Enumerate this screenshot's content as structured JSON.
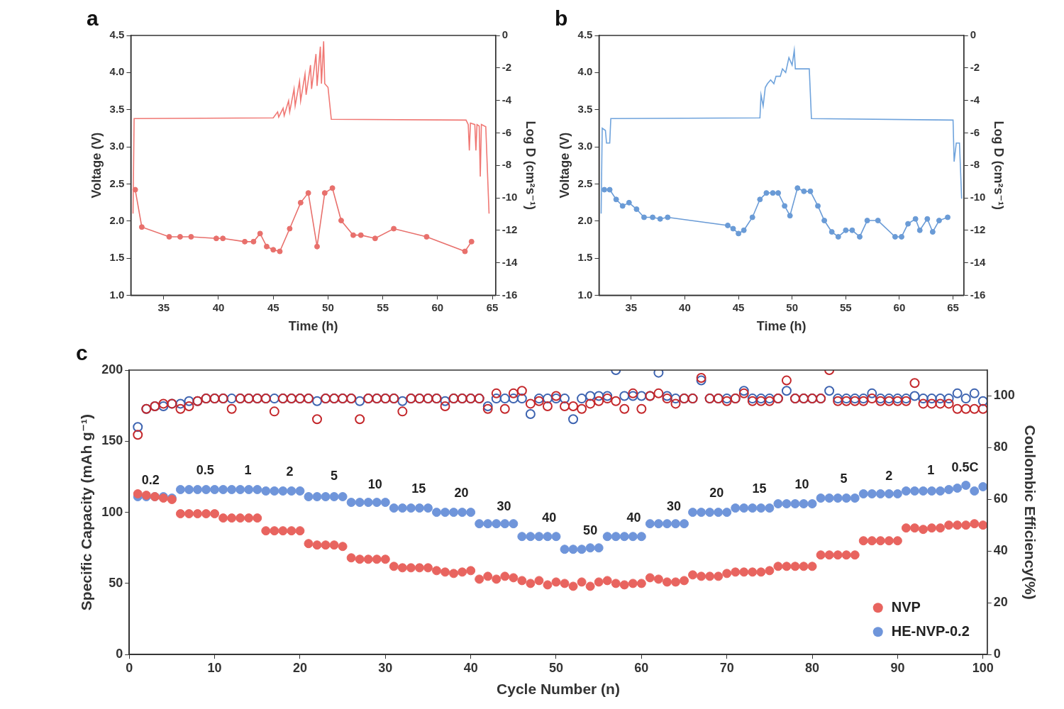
{
  "chart_data": [
    {
      "type": "line",
      "title": "a",
      "x_label": "Time (h)",
      "y_label": "Voltage (V)",
      "y2_label": "Log D (cm²s⁻¹)",
      "xlim": [
        32,
        65.3
      ],
      "xticks": [
        35,
        40,
        45,
        50,
        55,
        60,
        65
      ],
      "ylim": [
        1,
        4.5
      ],
      "yticks": [
        {
          "value": 1,
          "label": "1.0"
        },
        1.5,
        {
          "value": 2,
          "label": "2.0"
        },
        2.5,
        {
          "value": 3,
          "label": "3.0"
        },
        3.5,
        {
          "value": 4,
          "label": "4.0"
        },
        4.5
      ],
      "y2lim": [
        -16,
        0
      ],
      "y2ticks": [
        -16,
        -14,
        -12,
        -10,
        -8,
        -6,
        -4,
        -2,
        0
      ],
      "grid": false,
      "series": [
        {
          "color": "#f07874",
          "marker": "none",
          "line_style": "solid",
          "x": [
            32.2,
            32.3,
            45.0,
            45.4,
            45.5,
            45.9,
            46.0,
            46.4,
            46.5,
            46.9,
            47.0,
            47.4,
            47.5,
            47.9,
            48.0,
            48.4,
            48.5,
            48.9,
            49.0,
            49.3,
            49.4,
            49.6,
            49.7,
            50.0,
            50.3,
            62.6,
            62.8,
            62.9,
            63.0,
            63.4,
            63.5,
            63.6,
            63.8,
            63.9,
            64.0,
            64.4,
            64.7
          ],
          "values": [
            2.1,
            3.38,
            3.39,
            3.47,
            3.4,
            3.52,
            3.42,
            3.62,
            3.47,
            3.78,
            3.55,
            3.88,
            3.62,
            3.98,
            3.7,
            4.1,
            3.78,
            4.25,
            3.82,
            4.35,
            3.85,
            4.42,
            3.85,
            3.8,
            3.37,
            3.36,
            3.3,
            2.95,
            3.32,
            3.3,
            2.95,
            3.3,
            3.28,
            2.6,
            3.3,
            3.27,
            2.1
          ]
        },
        {
          "color": "#e8706c",
          "marker": "circle",
          "line_style": "solid",
          "axis": "y2",
          "x": [
            32.4,
            33.0,
            35.5,
            36.5,
            37.5,
            39.8,
            40.4,
            42.4,
            43.2,
            43.8,
            44.4,
            45.0,
            45.6,
            46.5,
            47.5,
            48.2,
            49.0,
            49.7,
            50.4,
            51.2,
            52.3,
            53.0,
            54.3,
            56.0,
            59.0,
            62.5,
            63.1
          ],
          "values": [
            -9.5,
            -11.8,
            -12.4,
            -12.4,
            -12.4,
            -12.5,
            -12.5,
            -12.7,
            -12.7,
            -12.2,
            -13.0,
            -13.2,
            -13.3,
            -11.9,
            -10.3,
            -9.7,
            -13.0,
            -9.7,
            -9.4,
            -11.4,
            -12.3,
            -12.3,
            -12.5,
            -11.9,
            -12.4,
            -13.3,
            -12.7
          ]
        }
      ]
    },
    {
      "type": "line",
      "title": "b",
      "x_label": "Time (h)",
      "y_label": "Voltage (V)",
      "y2_label": "Log D (cm²s⁻¹)",
      "xlim": [
        32,
        66
      ],
      "xticks": [
        35,
        40,
        45,
        50,
        55,
        60,
        65
      ],
      "ylim": [
        1,
        4.5
      ],
      "yticks": [
        {
          "value": 1,
          "label": "1.0"
        },
        1.5,
        {
          "value": 2,
          "label": "2.0"
        },
        2.5,
        {
          "value": 3,
          "label": "3.0"
        },
        3.5,
        {
          "value": 4,
          "label": "4.0"
        },
        4.5
      ],
      "y2lim": [
        -16,
        0
      ],
      "y2ticks": [
        -16,
        -14,
        -12,
        -10,
        -8,
        -6,
        -4,
        -2,
        0
      ],
      "grid": false,
      "series": [
        {
          "color": "#6fa3dc",
          "marker": "none",
          "line_style": "solid",
          "x": [
            32.2,
            32.3,
            32.6,
            32.7,
            33.0,
            33.1,
            47.0,
            47.1,
            47.3,
            47.5,
            47.7,
            48.0,
            48.3,
            48.5,
            48.9,
            49.1,
            49.4,
            49.7,
            50.0,
            50.2,
            50.3,
            51.6,
            51.8,
            65.0,
            65.1,
            65.3,
            65.6,
            65.8
          ],
          "values": [
            2.1,
            3.25,
            3.22,
            3.05,
            3.05,
            3.38,
            3.39,
            3.7,
            3.55,
            3.8,
            3.85,
            3.9,
            3.85,
            3.95,
            3.95,
            4.05,
            4.0,
            4.2,
            4.1,
            4.3,
            4.05,
            4.05,
            3.38,
            3.36,
            2.8,
            3.05,
            3.05,
            2.3
          ]
        },
        {
          "color": "#6a9bd6",
          "marker": "circle",
          "line_style": "solid",
          "axis": "y2",
          "x": [
            32.5,
            33.0,
            33.6,
            34.2,
            34.8,
            35.5,
            36.2,
            37.0,
            37.7,
            38.4,
            44.0,
            44.5,
            45.0,
            45.5,
            46.3,
            47.0,
            47.6,
            48.2,
            48.7,
            49.3,
            49.8,
            50.5,
            51.1,
            51.7,
            52.4,
            53.0,
            53.7,
            54.3,
            55.0,
            55.6,
            56.3,
            57.0,
            58.0,
            59.6,
            60.2,
            60.8,
            61.5,
            61.9,
            62.6,
            63.1,
            63.7,
            64.5
          ],
          "values": [
            -9.5,
            -9.5,
            -10.1,
            -10.5,
            -10.3,
            -10.7,
            -11.2,
            -11.2,
            -11.3,
            -11.2,
            -11.7,
            -11.9,
            -12.2,
            -12.0,
            -11.2,
            -10.1,
            -9.7,
            -9.7,
            -9.7,
            -10.5,
            -11.1,
            -9.4,
            -9.6,
            -9.6,
            -10.5,
            -11.4,
            -12.1,
            -12.4,
            -12.0,
            -12.0,
            -12.4,
            -11.4,
            -11.4,
            -12.4,
            -12.4,
            -11.6,
            -11.3,
            -12.0,
            -11.3,
            -12.1,
            -11.4,
            -11.2
          ]
        }
      ]
    },
    {
      "type": "scatter",
      "title": "c",
      "x_label": "Cycle Number (n)",
      "y_label": "Specific Capacity (mAh g⁻¹)",
      "y2_label": "Coulombic Efficiency(%)",
      "xlim": [
        0,
        100.5
      ],
      "xticks": [
        0,
        10,
        20,
        30,
        40,
        50,
        60,
        70,
        80,
        90,
        100
      ],
      "ylim": [
        0,
        200
      ],
      "yticks": [
        0,
        50,
        100,
        150,
        200
      ],
      "y2lim": [
        0,
        110
      ],
      "y2ticks": [
        0,
        20,
        40,
        60,
        80,
        100
      ],
      "grid": false,
      "legend": "lower right",
      "x": [
        1,
        2,
        3,
        4,
        5,
        6,
        7,
        8,
        9,
        10,
        11,
        12,
        13,
        14,
        15,
        16,
        17,
        18,
        19,
        20,
        21,
        22,
        23,
        24,
        25,
        26,
        27,
        28,
        29,
        30,
        31,
        32,
        33,
        34,
        35,
        36,
        37,
        38,
        39,
        40,
        41,
        42,
        43,
        44,
        45,
        46,
        47,
        48,
        49,
        50,
        51,
        52,
        53,
        54,
        55,
        56,
        57,
        58,
        59,
        60,
        61,
        62,
        63,
        64,
        65,
        66,
        67,
        68,
        69,
        70,
        71,
        72,
        73,
        74,
        75,
        76,
        77,
        78,
        79,
        80,
        81,
        82,
        83,
        84,
        85,
        86,
        87,
        88,
        89,
        90,
        91,
        92,
        93,
        94,
        95,
        96,
        97,
        98,
        99,
        100
      ],
      "series": [
        {
          "name": "NVP",
          "color": "#e8645f",
          "marker": "circle",
          "values": [
            113,
            112,
            111,
            110,
            109,
            99,
            99,
            99,
            99,
            99,
            96,
            96,
            96,
            96,
            96,
            87,
            87,
            87,
            87,
            87,
            78,
            77,
            77,
            77,
            76,
            68,
            67,
            67,
            67,
            67,
            62,
            61,
            61,
            61,
            61,
            59,
            58,
            57,
            58,
            59,
            53,
            55,
            53,
            55,
            54,
            52,
            50,
            52,
            49,
            51,
            50,
            48,
            51,
            48,
            51,
            52,
            50,
            49,
            50,
            50,
            54,
            53,
            51,
            51,
            52,
            56,
            55,
            55,
            55,
            57,
            58,
            58,
            58,
            58,
            59,
            62,
            62,
            62,
            62,
            62,
            70,
            70,
            70,
            70,
            70,
            80,
            80,
            80,
            80,
            80,
            89,
            89,
            88,
            89,
            89,
            91,
            91,
            91,
            92,
            91
          ]
        },
        {
          "name": "HE-NVP-0.2",
          "color": "#6f95da",
          "marker": "circle",
          "values": [
            111,
            111,
            111,
            111,
            110,
            116,
            116,
            116,
            116,
            116,
            116,
            116,
            116,
            116,
            116,
            115,
            115,
            115,
            115,
            115,
            111,
            111,
            111,
            111,
            111,
            107,
            107,
            107,
            107,
            107,
            103,
            103,
            103,
            103,
            103,
            100,
            100,
            100,
            100,
            100,
            92,
            92,
            92,
            92,
            92,
            83,
            83,
            83,
            83,
            83,
            74,
            74,
            74,
            75,
            75,
            83,
            83,
            83,
            83,
            83,
            92,
            92,
            92,
            92,
            92,
            100,
            100,
            100,
            100,
            100,
            103,
            103,
            103,
            103,
            103,
            106,
            106,
            106,
            106,
            106,
            110,
            110,
            110,
            110,
            110,
            113,
            113,
            113,
            113,
            113,
            115,
            115,
            115,
            115,
            115,
            116,
            117,
            119,
            115,
            118
          ]
        },
        {
          "name": "NVP",
          "color": "#c4272b",
          "marker": "open_circle",
          "axis": "y2",
          "values": [
            85,
            95,
            96,
            97,
            97,
            95,
            96,
            98,
            99,
            99,
            99,
            95,
            99,
            99,
            99,
            99,
            94,
            99,
            99,
            99,
            99,
            91,
            99,
            99,
            99,
            99,
            91,
            99,
            99,
            99,
            99,
            94,
            99,
            99,
            99,
            99,
            96,
            99,
            99,
            99,
            99,
            95,
            101,
            95,
            101,
            102,
            97,
            98,
            96,
            100,
            96,
            96,
            95,
            97,
            98,
            99,
            98,
            95,
            101,
            95,
            100,
            101,
            99,
            97,
            99,
            99,
            107,
            99,
            99,
            98,
            99,
            101,
            98,
            98,
            98,
            99,
            106,
            99,
            99,
            99,
            99,
            110,
            98,
            98,
            98,
            98,
            99,
            98,
            98,
            98,
            98,
            105,
            97,
            97,
            97,
            97,
            95,
            95,
            95,
            95
          ]
        },
        {
          "name": "HE-NVP-0.2",
          "color": "#3d63b0",
          "marker": "open_circle",
          "axis": "y2",
          "values": [
            88,
            95,
            96,
            96,
            97,
            97,
            98,
            98,
            99,
            99,
            99,
            99,
            99,
            99,
            99,
            99,
            99,
            99,
            99,
            99,
            99,
            98,
            99,
            99,
            99,
            99,
            98,
            99,
            99,
            99,
            99,
            98,
            99,
            99,
            99,
            99,
            98,
            99,
            99,
            99,
            99,
            96,
            99,
            99,
            99,
            99,
            93,
            99,
            99,
            99,
            99,
            91,
            99,
            100,
            100,
            100,
            110,
            100,
            100,
            100,
            100,
            109,
            100,
            99,
            99,
            99,
            106,
            99,
            99,
            99,
            99,
            102,
            99,
            99,
            99,
            99,
            102,
            99,
            99,
            99,
            99,
            102,
            99,
            99,
            99,
            99,
            101,
            99,
            99,
            99,
            99,
            100,
            99,
            99,
            99,
            99,
            101,
            99,
            101,
            98
          ]
        }
      ],
      "annotations": [
        {
          "text": "0.2",
          "x": 2.5,
          "y": 122
        },
        {
          "text": "0.5",
          "x": 8.9,
          "y": 129
        },
        {
          "text": "1",
          "x": 13.9,
          "y": 129
        },
        {
          "text": "2",
          "x": 18.8,
          "y": 128
        },
        {
          "text": "5",
          "x": 24,
          "y": 125
        },
        {
          "text": "10",
          "x": 28.8,
          "y": 119
        },
        {
          "text": "15",
          "x": 33.9,
          "y": 116
        },
        {
          "text": "20",
          "x": 38.9,
          "y": 113
        },
        {
          "text": "30",
          "x": 43.9,
          "y": 104
        },
        {
          "text": "40",
          "x": 49.2,
          "y": 96
        },
        {
          "text": "50",
          "x": 54,
          "y": 87
        },
        {
          "text": "40",
          "x": 59.1,
          "y": 96
        },
        {
          "text": "30",
          "x": 63.8,
          "y": 104
        },
        {
          "text": "20",
          "x": 68.8,
          "y": 113
        },
        {
          "text": "15",
          "x": 73.8,
          "y": 116
        },
        {
          "text": "10",
          "x": 78.8,
          "y": 119
        },
        {
          "text": "5",
          "x": 83.7,
          "y": 123
        },
        {
          "text": "2",
          "x": 89,
          "y": 125
        },
        {
          "text": "1",
          "x": 93.9,
          "y": 129
        },
        {
          "text": "0.5C",
          "x": 97.9,
          "y": 131
        }
      ]
    }
  ]
}
